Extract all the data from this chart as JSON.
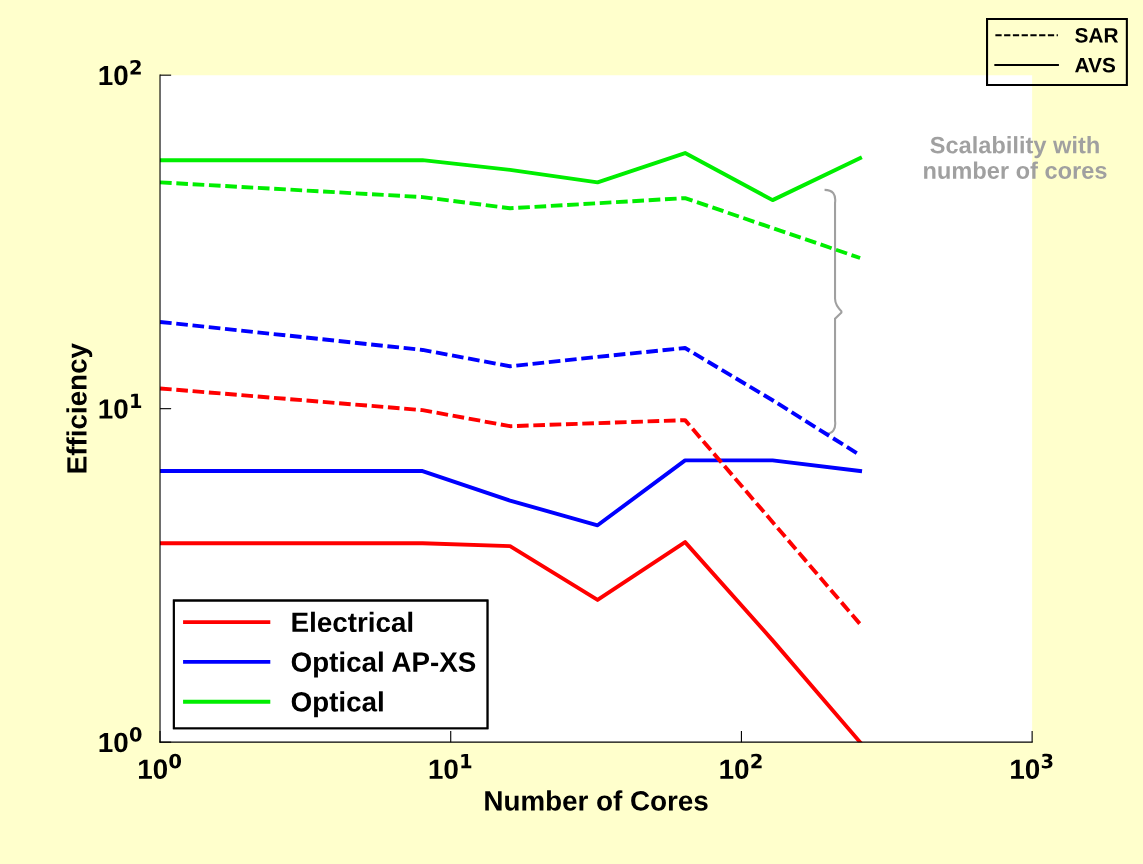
{
  "chart_data": {
    "type": "line",
    "xlabel": "Number of Cores",
    "ylabel": "Efficiency",
    "log": "xy",
    "grid": false,
    "legend": "bottom left",
    "marker": "none",
    "xlim": [
      1,
      1000
    ],
    "ylim": [
      1,
      100
    ],
    "xticks": [
      {
        "value": 1,
        "label": "10$^{0}$"
      },
      {
        "value": 10,
        "label": "10$^{1}$"
      },
      {
        "value": 100,
        "label": "10$^{2}$"
      },
      {
        "value": 1000,
        "label": "10$^{3}$"
      }
    ],
    "yticks": [
      {
        "value": 1,
        "label": "10$^{0}$"
      },
      {
        "value": 10,
        "label": "10$^{1}$"
      },
      {
        "value": 100,
        "label": "10$^{2}$"
      }
    ],
    "series": [
      {
        "name": "Electrical",
        "color": "#ff0000",
        "line_style": "solid",
        "x": [
          1,
          8,
          16,
          32,
          64,
          128,
          256
        ],
        "values": [
          3.95,
          3.95,
          3.87,
          2.67,
          3.98,
          2.02,
          1.0
        ]
      },
      {
        "name": "Optical AP-XS",
        "color": "#0000ff",
        "line_style": "solid",
        "x": [
          1,
          8,
          16,
          32,
          64,
          128,
          256
        ],
        "values": [
          6.5,
          6.5,
          5.3,
          4.47,
          7.0,
          7.0,
          6.5
        ]
      },
      {
        "name": "Optical",
        "color": "#00ee00",
        "line_style": "solid",
        "x": [
          1,
          8,
          16,
          32,
          64,
          128,
          256
        ],
        "values": [
          55.6,
          55.6,
          52,
          47.7,
          58.4,
          42.2,
          56.4
        ]
      },
      {
        "color": "#ff0000",
        "line_style": "dashed",
        "x": [
          1,
          8,
          16,
          32,
          64,
          256
        ],
        "values": [
          11.5,
          9.9,
          8.86,
          9.05,
          9.24,
          2.26
        ]
      },
      {
        "color": "#0000ff",
        "line_style": "dashed",
        "x": [
          1,
          8,
          16,
          32,
          64,
          128,
          256
        ],
        "values": [
          18.2,
          15.0,
          13.4,
          14.3,
          15.2,
          10.6,
          7.25
        ]
      },
      {
        "color": "#00ee00",
        "line_style": "dashed",
        "x": [
          1,
          8,
          16,
          32,
          64,
          256
        ],
        "values": [
          47.7,
          43.1,
          39.9,
          41.3,
          42.8,
          28.3
        ]
      }
    ],
    "annotations": [
      "SAR",
      "AVS",
      "Scalability with\nnumber of cores"
    ]
  }
}
